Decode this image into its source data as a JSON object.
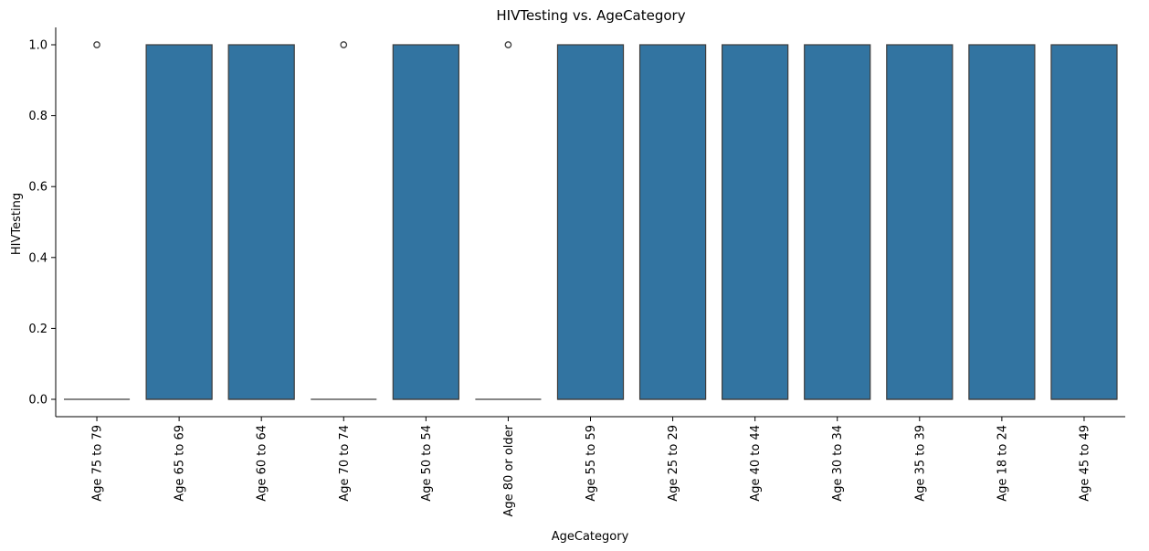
{
  "chart_data": {
    "type": "box",
    "title": "HIVTesting vs. AgeCategory",
    "xlabel": "AgeCategory",
    "ylabel": "HIVTesting",
    "ylim": [
      -0.05,
      1.05
    ],
    "yticks": [
      "0.0",
      "0.2",
      "0.4",
      "0.6",
      "0.8",
      "1.0"
    ],
    "ytick_values": [
      0,
      0.2,
      0.4,
      0.6,
      0.8,
      1.0
    ],
    "box_color": "#3274a1",
    "edge_color": "#3d3d3d",
    "grid": false,
    "categories": [
      "Age 75 to 79",
      "Age 65 to 69",
      "Age 60 to 64",
      "Age 70 to 74",
      "Age 50 to 54",
      "Age 80 or older",
      "Age 55 to 59",
      "Age 25 to 29",
      "Age 40 to 44",
      "Age 30 to 34",
      "Age 35 to 39",
      "Age 18 to 24",
      "Age 45 to 49"
    ],
    "boxes": [
      {
        "q1": 0,
        "median": 0,
        "q3": 0,
        "whisker_low": 0,
        "whisker_high": 0,
        "outliers": [
          1
        ]
      },
      {
        "q1": 0,
        "median": 0,
        "q3": 1,
        "whisker_low": 0,
        "whisker_high": 1,
        "outliers": []
      },
      {
        "q1": 0,
        "median": 0,
        "q3": 1,
        "whisker_low": 0,
        "whisker_high": 1,
        "outliers": []
      },
      {
        "q1": 0,
        "median": 0,
        "q3": 0,
        "whisker_low": 0,
        "whisker_high": 0,
        "outliers": [
          1
        ]
      },
      {
        "q1": 0,
        "median": 0,
        "q3": 1,
        "whisker_low": 0,
        "whisker_high": 1,
        "outliers": []
      },
      {
        "q1": 0,
        "median": 0,
        "q3": 0,
        "whisker_low": 0,
        "whisker_high": 0,
        "outliers": [
          1
        ]
      },
      {
        "q1": 0,
        "median": 0,
        "q3": 1,
        "whisker_low": 0,
        "whisker_high": 1,
        "outliers": []
      },
      {
        "q1": 0,
        "median": 0,
        "q3": 1,
        "whisker_low": 0,
        "whisker_high": 1,
        "outliers": []
      },
      {
        "q1": 0,
        "median": 0,
        "q3": 1,
        "whisker_low": 0,
        "whisker_high": 1,
        "outliers": []
      },
      {
        "q1": 0,
        "median": 0,
        "q3": 1,
        "whisker_low": 0,
        "whisker_high": 1,
        "outliers": []
      },
      {
        "q1": 0,
        "median": 0,
        "q3": 1,
        "whisker_low": 0,
        "whisker_high": 1,
        "outliers": []
      },
      {
        "q1": 0,
        "median": 0,
        "q3": 1,
        "whisker_low": 0,
        "whisker_high": 1,
        "outliers": []
      },
      {
        "q1": 0,
        "median": 0,
        "q3": 1,
        "whisker_low": 0,
        "whisker_high": 1,
        "outliers": []
      }
    ]
  }
}
